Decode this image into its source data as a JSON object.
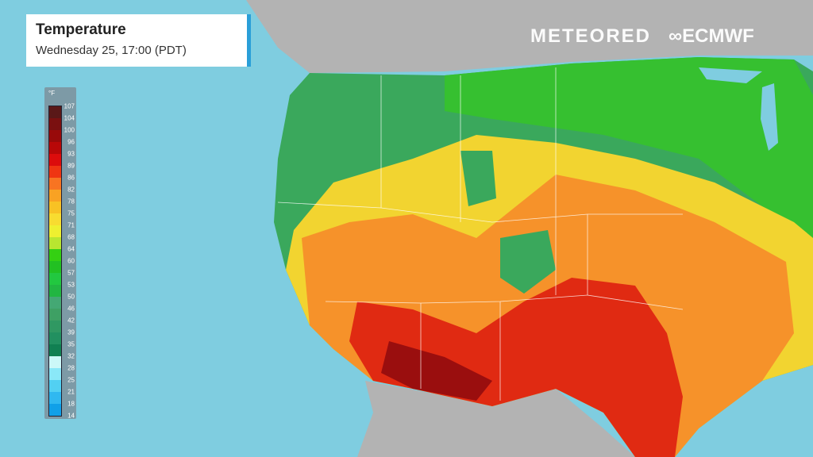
{
  "header": {
    "title": "Temperature",
    "subtitle": "Wednesday 25, 17:00 (PDT)"
  },
  "brand": {
    "logo1": "METEORED",
    "logo2": "ECMWF"
  },
  "legend": {
    "unit": "°F",
    "labels": [
      "107",
      "104",
      "100",
      "96",
      "93",
      "89",
      "86",
      "82",
      "78",
      "75",
      "71",
      "68",
      "64",
      "60",
      "57",
      "53",
      "50",
      "46",
      "42",
      "39",
      "35",
      "32",
      "28",
      "25",
      "21",
      "18",
      "14"
    ],
    "colors": [
      "#5a1818",
      "#7a1010",
      "#980a0a",
      "#b80808",
      "#dc0c0c",
      "#ef3512",
      "#f87422",
      "#f9a223",
      "#f8c224",
      "#f8dc30",
      "#eef030",
      "#b8e630",
      "#34d012",
      "#22c022",
      "#22c840",
      "#22b642",
      "#44a874",
      "#3ea064",
      "#309862",
      "#229060",
      "#118052",
      "#ccf8f8",
      "#8ae8f8",
      "#52d0f2",
      "#30b8f0",
      "#10a0e8"
    ]
  },
  "map": {
    "ocean_color": "#7fcde0",
    "land_color": "#b3b3b3"
  }
}
